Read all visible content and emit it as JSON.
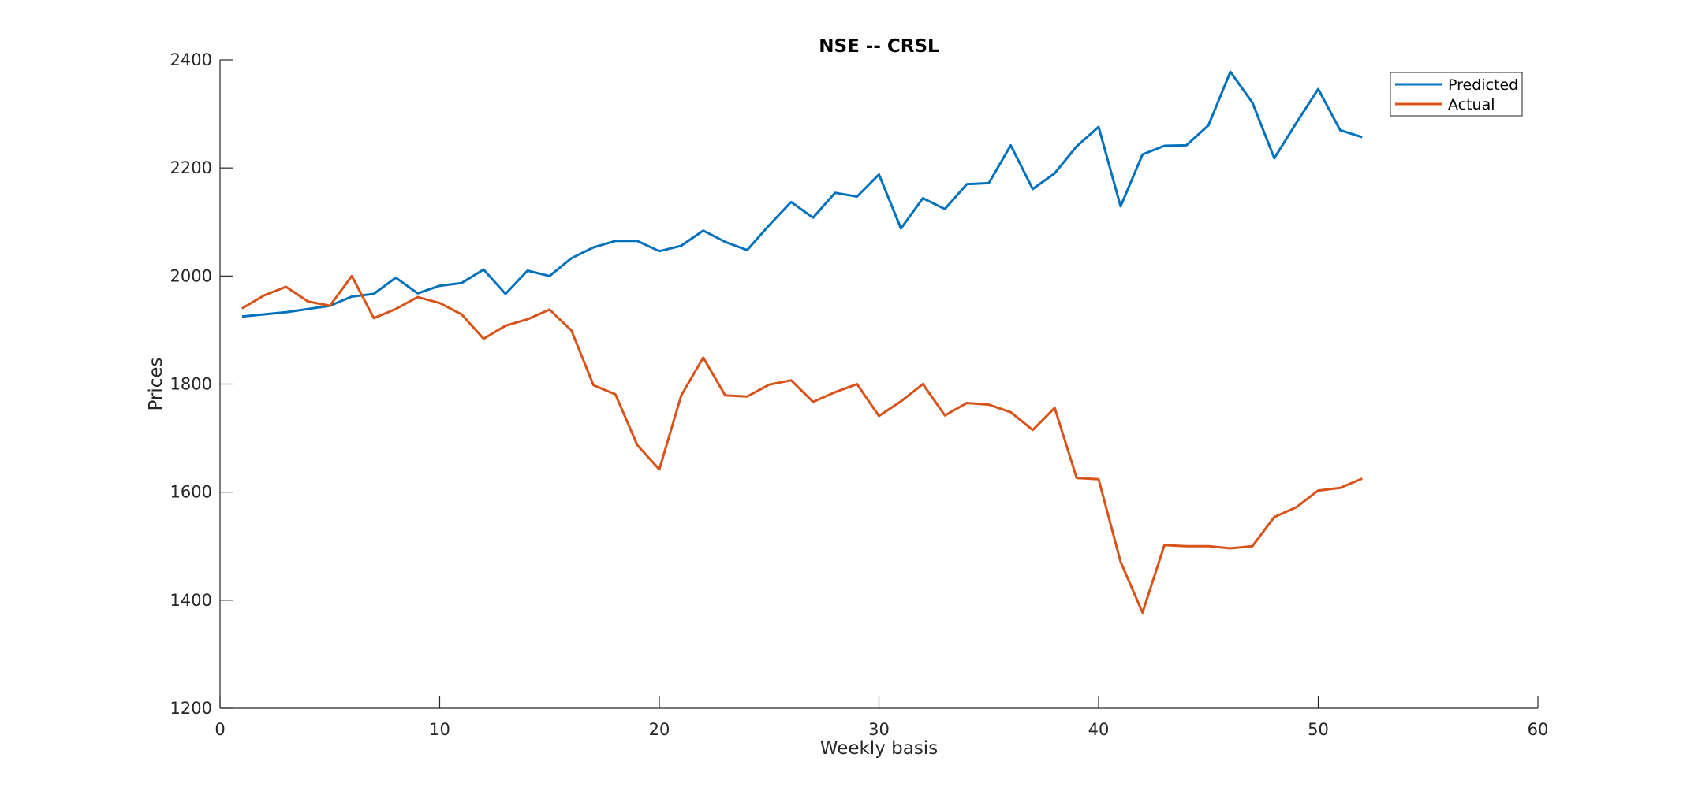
{
  "chart_data": {
    "type": "line",
    "title": "NSE -- CRSL",
    "xlabel": "Weekly basis",
    "ylabel": "Prices",
    "xlim": [
      0,
      60
    ],
    "ylim": [
      1200,
      2400
    ],
    "xticks": [
      0,
      10,
      20,
      30,
      40,
      50,
      60
    ],
    "yticks": [
      1200,
      1400,
      1600,
      1800,
      2000,
      2200,
      2400
    ],
    "grid": false,
    "legend_position": "top-right",
    "x": [
      1,
      2,
      3,
      4,
      5,
      6,
      7,
      8,
      9,
      10,
      11,
      12,
      13,
      14,
      15,
      16,
      17,
      18,
      19,
      20,
      21,
      22,
      23,
      24,
      25,
      26,
      27,
      28,
      29,
      30,
      31,
      32,
      33,
      34,
      35,
      36,
      37,
      38,
      39,
      40,
      41,
      42,
      43,
      44,
      45,
      46,
      47,
      48,
      49,
      50,
      51,
      52
    ],
    "series": [
      {
        "name": "Predicted",
        "color": "#0072BD",
        "values": [
          1925,
          1929,
          1933,
          1939,
          1945,
          1962,
          1967,
          1997,
          1968,
          1982,
          1987,
          2012,
          1967,
          2010,
          2000,
          2033,
          2053,
          2065,
          2065,
          2046,
          2056,
          2084,
          2063,
          2048,
          2094,
          2137,
          2108,
          2154,
          2147,
          2188,
          2088,
          2144,
          2124,
          2170,
          2172,
          2242,
          2161,
          2190,
          2240,
          2276,
          2129,
          2225,
          2241,
          2242,
          2279,
          2378,
          2321,
          2218,
          2283,
          2346,
          2270,
          2257
        ]
      },
      {
        "name": "Actual",
        "color": "#D95319",
        "values": [
          1940,
          1964,
          1980,
          1953,
          1945,
          2000,
          1922,
          1939,
          1961,
          1950,
          1929,
          1884,
          1908,
          1920,
          1938,
          1899,
          1798,
          1781,
          1687,
          1642,
          1779,
          1849,
          1779,
          1777,
          1799,
          1807,
          1767,
          1785,
          1800,
          1741,
          1768,
          1800,
          1742,
          1765,
          1762,
          1748,
          1715,
          1756,
          1626,
          1624,
          1471,
          1377,
          1502,
          1500,
          1500,
          1496,
          1500,
          1554,
          1572,
          1603,
          1608,
          1625
        ]
      }
    ]
  }
}
